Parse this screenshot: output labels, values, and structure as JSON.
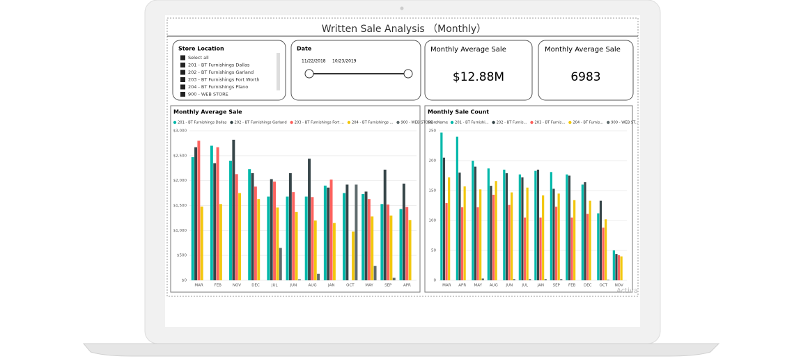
{
  "dashboard": {
    "title": "Written Sale Analysis （Monthly）",
    "watermark": "Activa"
  },
  "store_slicer": {
    "title": "Store Location",
    "items": [
      "Select all",
      "201 - BT Furnishings Dallas",
      "202 - BT Furnishings Garland",
      "203 - BT Furnishings Fort Worth",
      "204 - BT Furnishings Plano",
      "900 - WEB STORE"
    ]
  },
  "date_slicer": {
    "title": "Date",
    "start": "11/22/2018",
    "end": "10/23/2019"
  },
  "cards": [
    {
      "title": "Monthly Average Sale",
      "value": "$12.88M"
    },
    {
      "title": "Monthly Average Sale",
      "value": "6983"
    }
  ],
  "chart_data": [
    {
      "type": "bar",
      "title": "Monthly Average  Sale",
      "categories": [
        "MAR",
        "FEB",
        "NOV",
        "DEC",
        "JUL",
        "JUN",
        "AUG",
        "JAN",
        "OCT",
        "MAY",
        "SEP",
        "APR"
      ],
      "ylim": [
        0,
        3000
      ],
      "yticks": [
        {
          "value": 0,
          "label": "$0"
        },
        {
          "value": 500,
          "label": "$500"
        },
        {
          "value": 1000,
          "label": "$1,000"
        },
        {
          "value": 1500,
          "label": "$1,500"
        },
        {
          "value": 2000,
          "label": "$2,000"
        },
        {
          "value": 2500,
          "label": "$2,500"
        },
        {
          "value": 3000,
          "label": "$3,000"
        }
      ],
      "series": [
        {
          "name": "201 - BT Furnishings Dallas",
          "color": "#01b8aa",
          "values": [
            2470,
            2700,
            2400,
            2230,
            1680,
            1680,
            1680,
            1900,
            1750,
            1730,
            1530,
            1430
          ]
        },
        {
          "name": "202 - BT Furnishings Garland",
          "color": "#374649",
          "values": [
            2670,
            2350,
            2820,
            2150,
            2030,
            2150,
            2440,
            1860,
            1920,
            1780,
            2220,
            1940
          ]
        },
        {
          "name": "203 - BT Furnishings Fort ...",
          "color": "#fd625e",
          "values": [
            2800,
            2670,
            2130,
            1880,
            1980,
            1770,
            1670,
            2020,
            null,
            1630,
            1520,
            1470
          ]
        },
        {
          "name": "204 - BT Furnishings ...",
          "color": "#f2c80f",
          "values": [
            1480,
            1530,
            1750,
            1630,
            1460,
            1370,
            1200,
            1150,
            980,
            1280,
            1300,
            1210
          ]
        },
        {
          "name": "900 - WEB STORE",
          "color": "#5f6b6d",
          "values": [
            null,
            null,
            null,
            null,
            650,
            20,
            130,
            null,
            1920,
            290,
            50,
            null
          ]
        }
      ]
    },
    {
      "type": "bar",
      "title": "Monthly  Sale Count",
      "legend_title": "StoreName",
      "categories": [
        "MAR",
        "APR",
        "MAY",
        "AUG",
        "JUN",
        "JUL",
        "JAN",
        "SEP",
        "FEB",
        "DEC",
        "OCT",
        "NOV"
      ],
      "ylim": [
        0,
        250
      ],
      "yticks": [
        0,
        50,
        100,
        150,
        200,
        250
      ],
      "series": [
        {
          "name": "201 - BT Furnishi...",
          "color": "#01b8aa",
          "values": [
            247,
            240,
            200,
            187,
            185,
            177,
            183,
            181,
            177,
            160,
            112,
            50
          ]
        },
        {
          "name": "202 - BT Furnis...",
          "color": "#374649",
          "values": [
            205,
            180,
            190,
            158,
            179,
            172,
            185,
            153,
            175,
            164,
            133,
            44
          ]
        },
        {
          "name": "203 - BT Furnis...",
          "color": "#fd625e",
          "values": [
            129,
            122,
            122,
            143,
            126,
            105,
            105,
            123,
            105,
            111,
            88,
            42
          ]
        },
        {
          "name": "204 - BT Furnis...",
          "color": "#f2c80f",
          "values": [
            172,
            157,
            152,
            166,
            147,
            155,
            142,
            145,
            134,
            133,
            102,
            40
          ]
        },
        {
          "name": "900 - WEB ST...",
          "color": "#5f6b6d",
          "values": [
            null,
            null,
            3,
            null,
            2,
            2,
            2,
            2,
            null,
            null,
            1,
            null
          ]
        }
      ]
    }
  ]
}
